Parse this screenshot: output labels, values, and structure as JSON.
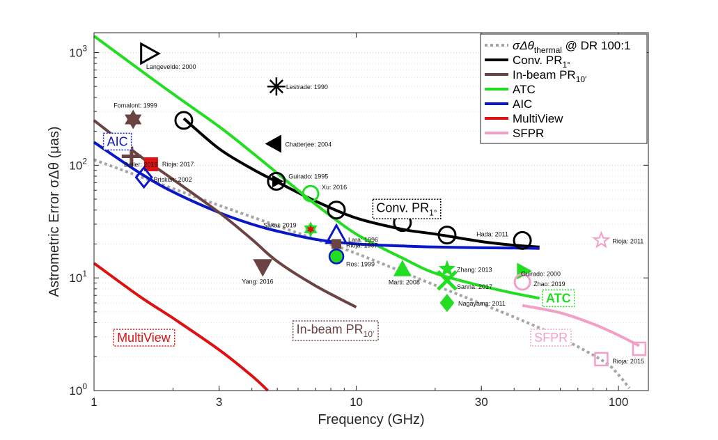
{
  "chart_data": {
    "type": "line",
    "title": "",
    "xlabel": "Frequency (GHz)",
    "ylabel": "Astrometric Error σΔθ (μas)",
    "xscale": "log",
    "yscale": "log",
    "xlim": [
      1,
      130
    ],
    "ylim": [
      1,
      1500
    ],
    "grid": "minor-y dotted",
    "x_ticks": [
      {
        "value": 1,
        "label": "1"
      },
      {
        "value": 3,
        "label": "3"
      },
      {
        "value": 10,
        "label": "10"
      },
      {
        "value": 30,
        "label": "30"
      },
      {
        "value": 100,
        "label": "100"
      }
    ],
    "y_ticks": [
      {
        "value": 1,
        "base": "10",
        "exp": "0"
      },
      {
        "value": 10,
        "base": "10",
        "exp": "1"
      },
      {
        "value": 100,
        "base": "10",
        "exp": "2"
      },
      {
        "value": 1000,
        "base": "10",
        "exp": "3"
      }
    ],
    "legend": {
      "placement": "top-right",
      "entries": [
        {
          "key": "thermal",
          "text": "σΔθ",
          "sub": "thermal",
          "post": " @ DR 100:1",
          "color": "#a6a6a6",
          "dash": true
        },
        {
          "key": "conv",
          "text": "Conv. PR",
          "sub": "1°",
          "post": "",
          "color": "#000000",
          "dash": false
        },
        {
          "key": "inbeam",
          "text": "In-beam PR",
          "sub": "10′",
          "post": "",
          "color": "#6b4342",
          "dash": false
        },
        {
          "key": "atc",
          "text": "ATC",
          "sub": "",
          "post": "",
          "color": "#22dd22",
          "dash": false
        },
        {
          "key": "aic",
          "text": "AIC",
          "sub": "",
          "post": "",
          "color": "#0a17c8",
          "dash": false
        },
        {
          "key": "multiview",
          "text": "MultiView",
          "sub": "",
          "post": "",
          "color": "#dd1111",
          "dash": false
        },
        {
          "key": "sfpr",
          "text": "SFPR",
          "sub": "",
          "post": "",
          "color": "#f2a0c8",
          "dash": false
        }
      ]
    },
    "series": [
      {
        "name": "thermal",
        "color": "#a6a6a6",
        "dash": true,
        "x": [
          1,
          2,
          3,
          5,
          7,
          10,
          20,
          30,
          50,
          70,
          90,
          100,
          110
        ],
        "y": [
          112,
          62,
          44,
          29,
          22,
          16.5,
          8.6,
          5.9,
          3.6,
          2.45,
          1.75,
          1.38,
          1.05
        ]
      },
      {
        "name": "conv",
        "color": "#000000",
        "dash": false,
        "x": [
          2.2,
          3,
          4,
          5,
          7,
          10,
          15,
          20,
          30,
          40,
          50
        ],
        "y": [
          260,
          140,
          93,
          71,
          48,
          34,
          27,
          24.5,
          21,
          19.5,
          18.8
        ]
      },
      {
        "name": "atc",
        "color": "#22dd22",
        "dash": false,
        "x": [
          1,
          1.5,
          2,
          3,
          4,
          5,
          7,
          10,
          15,
          20,
          30,
          40,
          50
        ],
        "y": [
          1400,
          700,
          430,
          220,
          130,
          85,
          45,
          24.5,
          15,
          11,
          8.5,
          7.3,
          6.6
        ]
      },
      {
        "name": "aic",
        "color": "#0a17c8",
        "dash": false,
        "x": [
          1,
          1.5,
          2,
          3,
          4,
          5,
          7,
          10,
          15,
          20,
          30,
          40,
          50
        ],
        "y": [
          160,
          85,
          58,
          38,
          30,
          26,
          22,
          20,
          19.2,
          18.8,
          18.5,
          18.4,
          18.3
        ]
      },
      {
        "name": "inbeam",
        "color": "#6b4342",
        "dash": false,
        "x": [
          1,
          1.5,
          2,
          3,
          4,
          5,
          7,
          10
        ],
        "y": [
          250,
          120,
          75,
          38,
          22,
          14,
          8.5,
          5.5
        ]
      },
      {
        "name": "multiview",
        "color": "#dd1111",
        "dash": false,
        "x": [
          1,
          1.5,
          2,
          3,
          4,
          4.6
        ],
        "y": [
          13.5,
          6.8,
          4.4,
          2.3,
          1.35,
          1.0
        ]
      },
      {
        "name": "sfpr",
        "color": "#f2a0c8",
        "dash": false,
        "x": [
          43,
          60,
          80,
          100,
          120
        ],
        "y": [
          5.7,
          4.9,
          3.9,
          3.1,
          2.5
        ]
      }
    ],
    "points": [
      {
        "label": "Langevelde: 2000",
        "x": 1.62,
        "y": 980,
        "marker": "tri-right-open",
        "color": "#000000",
        "size": 14
      },
      {
        "label": "Lestrade: 1990",
        "x": 4.96,
        "y": 500,
        "marker": "asterisk",
        "color": "#000000",
        "size": 13
      },
      {
        "label": "Fomalont: 1999",
        "x": 1.41,
        "y": 255,
        "marker": "hexagram",
        "color": "#6b4342",
        "size": 14
      },
      {
        "label": "Chatterjee: 2004",
        "x": 4.86,
        "y": 155,
        "marker": "tri-left",
        "color": "#000000",
        "size": 13
      },
      {
        "label": "Deller: 2019",
        "x": 1.39,
        "y": 120,
        "marker": "plus",
        "color": "#6b4342",
        "size": 14
      },
      {
        "label": "Rioja: 2017",
        "x": 1.65,
        "y": 102,
        "marker": "square",
        "color": "#dd1111",
        "size": 10
      },
      {
        "label": "Brisken: 2002",
        "x": 1.55,
        "y": 78,
        "marker": "diamond-open",
        "color": "#0a17c8",
        "size": 14
      },
      {
        "label": "Guirado: 1995",
        "x": 5.0,
        "y": 72,
        "marker": "tri-right",
        "color": "#000000",
        "size": 9
      },
      {
        "label": "Xu: 2016",
        "x": 6.7,
        "y": 56,
        "marker": "circle-open",
        "color": "#22dd22",
        "size": 11
      },
      {
        "label": "Sakai: 2019",
        "x": 6.7,
        "y": 27,
        "marker": "hexagram-combo",
        "color": "#22dd22",
        "size": 11
      },
      {
        "label": "Lara: 1996",
        "x": 8.4,
        "y": 24,
        "marker": "tri-up-open",
        "color": "#0a17c8",
        "size": 14
      },
      {
        "label": "Rioja: 1997",
        "x": 8.4,
        "y": 20,
        "marker": "square-small",
        "color": "#6b4342",
        "size": 7
      },
      {
        "label": "Ros: 1999",
        "x": 8.4,
        "y": 15.5,
        "marker": "circle-filled",
        "color": "#22dd22",
        "size": 10
      },
      {
        "label": "Yang: 2016",
        "x": 4.4,
        "y": 12.5,
        "marker": "tri-down",
        "color": "#6b4342",
        "size": 14
      },
      {
        "label": "Marti: 2008",
        "x": 15.0,
        "y": 12,
        "marker": "tri-up",
        "color": "#22dd22",
        "size": 13
      },
      {
        "label": "Zhang: 2013",
        "x": 22.2,
        "y": 12,
        "marker": "pentagram",
        "color": "#22dd22",
        "size": 13
      },
      {
        "label": "Sanna: 2017",
        "x": 22.2,
        "y": 9.5,
        "marker": "x",
        "color": "#22dd22",
        "size": 13
      },
      {
        "label": "Nagayama: 2011",
        "x": 22.2,
        "y": 6,
        "marker": "diamond",
        "color": "#22dd22",
        "size": 13
      },
      {
        "label": "Guirado: 2000",
        "x": 43.5,
        "y": 11.5,
        "marker": "tri-right",
        "color": "#22dd22",
        "size": 12
      },
      {
        "label": "Zhao: 2019",
        "x": 43.0,
        "y": 9.2,
        "marker": "circle-open",
        "color": "#f2a0c8",
        "size": 11
      },
      {
        "label": "Hada: 2011",
        "x": 43.0,
        "y": 21.5,
        "marker": "",
        "color": "#000000",
        "size": 0
      },
      {
        "label": "Rioja: 2011",
        "x": 86.0,
        "y": 21.5,
        "marker": "pentagram-open",
        "color": "#f2a0c8",
        "size": 11
      },
      {
        "label": "Rioja: 2015",
        "x": 86.0,
        "y": 1.9,
        "marker": "square-open",
        "color": "#f2a0c8",
        "size": 9
      }
    ],
    "extra_markers": [
      {
        "x": 2.2,
        "y": 250,
        "marker": "circle-open",
        "color": "#000000",
        "size": 12
      },
      {
        "x": 4.96,
        "y": 72,
        "marker": "circle-open",
        "color": "#000000",
        "size": 12
      },
      {
        "x": 8.4,
        "y": 40,
        "marker": "circle-open",
        "color": "#000000",
        "size": 12
      },
      {
        "x": 15.0,
        "y": 31,
        "marker": "circle-open",
        "color": "#000000",
        "size": 12
      },
      {
        "x": 22.2,
        "y": 24,
        "marker": "circle-open",
        "color": "#000000",
        "size": 12
      },
      {
        "x": 43.0,
        "y": 21.5,
        "marker": "circle-open",
        "color": "#000000",
        "size": 12
      },
      {
        "x": 120,
        "y": 2.35,
        "marker": "square-open",
        "color": "#f2a0c8",
        "size": 9
      }
    ],
    "box_labels": [
      {
        "key": "aic",
        "text": "AIC",
        "sub": "",
        "color": "#0a17c8",
        "x": 1.08,
        "y": 162,
        "bold": false
      },
      {
        "key": "conv",
        "text": "Conv. PR",
        "sub": "1°",
        "color": "#000000",
        "x": 11.5,
        "y": 42,
        "bold": false
      },
      {
        "key": "atc",
        "text": "ATC",
        "sub": "",
        "color": "#22dd22",
        "x": 51,
        "y": 6.6,
        "bold": true
      },
      {
        "key": "inbeam",
        "text": "In-beam PR",
        "sub": "10′",
        "color": "#6b4342",
        "x": 5.7,
        "y": 3.5,
        "bold": false
      },
      {
        "key": "multiview",
        "text": "MultiView",
        "sub": "",
        "color": "#dd1111",
        "x": 1.18,
        "y": 2.95,
        "bold": false
      },
      {
        "key": "sfpr",
        "text": "SFPR",
        "sub": "",
        "color": "#f2a0c8",
        "x": 46,
        "y": 2.95,
        "bold": false
      }
    ]
  }
}
